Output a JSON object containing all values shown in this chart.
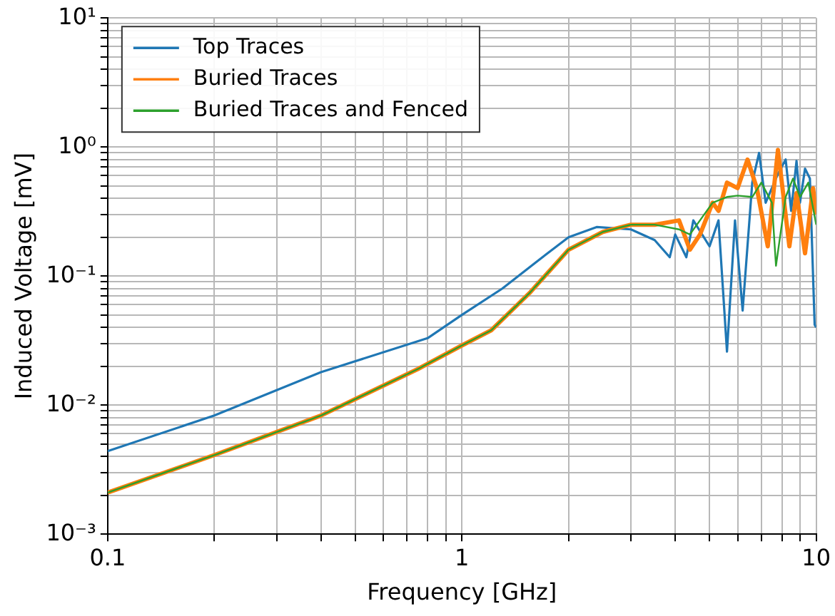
{
  "chart_data": {
    "type": "line",
    "xlabel": "Frequency [GHz]",
    "ylabel": "Induced Voltage [mV]",
    "log": "xy",
    "grid": true,
    "legend": "top left",
    "line_style": "solid",
    "marker": "none",
    "xlim": [
      0.1,
      10
    ],
    "ylim": [
      0.001,
      10
    ],
    "xticks": [
      0.1,
      {
        "value": 0.2,
        "label": null
      },
      {
        "value": 0.3,
        "label": null
      },
      {
        "value": 0.4,
        "label": null
      },
      {
        "value": 0.5,
        "label": null
      },
      {
        "value": 0.6,
        "label": null
      },
      {
        "value": 0.7,
        "label": null
      },
      {
        "value": 0.8,
        "label": null
      },
      {
        "value": 0.9,
        "label": null
      },
      1,
      {
        "value": 2,
        "label": null
      },
      {
        "value": 3,
        "label": null
      },
      {
        "value": 4,
        "label": null
      },
      {
        "value": 5,
        "label": null
      },
      {
        "value": 6,
        "label": null
      },
      {
        "value": 7,
        "label": null
      },
      {
        "value": 8,
        "label": null
      },
      {
        "value": 9,
        "label": null
      },
      10
    ],
    "yticks": [
      {
        "value": 0.001,
        "label": "10⁻³"
      },
      {
        "value": 0.002,
        "label": null
      },
      {
        "value": 0.003,
        "label": null
      },
      {
        "value": 0.004,
        "label": null
      },
      {
        "value": 0.005,
        "label": null
      },
      {
        "value": 0.006,
        "label": null
      },
      {
        "value": 0.007,
        "label": null
      },
      {
        "value": 0.008,
        "label": null
      },
      {
        "value": 0.009,
        "label": null
      },
      {
        "value": 0.01,
        "label": "10⁻²"
      },
      {
        "value": 0.02,
        "label": null
      },
      {
        "value": 0.03,
        "label": null
      },
      {
        "value": 0.04,
        "label": null
      },
      {
        "value": 0.05,
        "label": null
      },
      {
        "value": 0.06,
        "label": null
      },
      {
        "value": 0.07,
        "label": null
      },
      {
        "value": 0.08,
        "label": null
      },
      {
        "value": 0.09,
        "label": null
      },
      {
        "value": 0.1,
        "label": "10⁻¹"
      },
      {
        "value": 0.2,
        "label": null
      },
      {
        "value": 0.3,
        "label": null
      },
      {
        "value": 0.4,
        "label": null
      },
      {
        "value": 0.5,
        "label": null
      },
      {
        "value": 0.6,
        "label": null
      },
      {
        "value": 0.7,
        "label": null
      },
      {
        "value": 0.8,
        "label": null
      },
      {
        "value": 0.9,
        "label": null
      },
      {
        "value": 1,
        "label": "10⁰"
      },
      {
        "value": 2,
        "label": null
      },
      {
        "value": 3,
        "label": null
      },
      {
        "value": 4,
        "label": null
      },
      {
        "value": 5,
        "label": null
      },
      {
        "value": 6,
        "label": null
      },
      {
        "value": 7,
        "label": null
      },
      {
        "value": 8,
        "label": null
      },
      {
        "value": 9,
        "label": null
      },
      {
        "value": 10,
        "label": "10¹"
      }
    ],
    "series": [
      {
        "name": "Top Traces",
        "color": "#1f77b4",
        "x": [
          0.1,
          0.2,
          0.4,
          0.8,
          1,
          1.3,
          1.6,
          2,
          2.4,
          3,
          3.5,
          3.86,
          4,
          4.3,
          4.5,
          5,
          5.3,
          5.6,
          5.9,
          6.2,
          6.6,
          6.9,
          7.2,
          7.8,
          8.2,
          8.5,
          8.8,
          9,
          9.3,
          9.6,
          9.9,
          10
        ],
        "values": [
          0.0044,
          0.0083,
          0.018,
          0.033,
          0.05,
          0.08,
          0.125,
          0.2,
          0.24,
          0.23,
          0.19,
          0.14,
          0.21,
          0.14,
          0.27,
          0.17,
          0.27,
          0.026,
          0.27,
          0.054,
          0.53,
          0.9,
          0.37,
          0.62,
          0.8,
          0.32,
          0.78,
          0.37,
          0.68,
          0.57,
          0.042,
          0.04
        ]
      },
      {
        "name": "Buried Traces",
        "color": "#ff7f0e",
        "x": [
          0.1,
          0.2,
          0.4,
          0.75,
          1,
          1.21,
          1.56,
          2,
          2.5,
          3,
          3.5,
          4.1,
          4.4,
          4.7,
          5.1,
          5.3,
          5.6,
          6,
          6.4,
          6.8,
          7.3,
          7.8,
          8.4,
          8.8,
          9.3,
          9.8,
          10
        ],
        "values": [
          0.0021,
          0.0041,
          0.0083,
          0.019,
          0.029,
          0.038,
          0.075,
          0.16,
          0.22,
          0.25,
          0.25,
          0.27,
          0.16,
          0.21,
          0.37,
          0.32,
          0.53,
          0.48,
          0.8,
          0.48,
          0.17,
          0.95,
          0.17,
          0.44,
          0.15,
          0.48,
          0.3
        ]
      },
      {
        "name": "Buried Traces and Fenced",
        "color": "#2ca02c",
        "x": [
          0.1,
          0.2,
          0.4,
          0.75,
          1,
          1.21,
          1.56,
          2,
          2.5,
          3,
          3.5,
          4.1,
          4.4,
          5.1,
          5.6,
          6,
          6.6,
          7,
          7.5,
          7.7,
          8.2,
          8.6,
          9,
          9.5,
          9.9,
          10
        ],
        "values": [
          0.0021,
          0.0041,
          0.0083,
          0.019,
          0.029,
          0.038,
          0.075,
          0.16,
          0.22,
          0.25,
          0.25,
          0.23,
          0.21,
          0.37,
          0.41,
          0.42,
          0.41,
          0.53,
          0.37,
          0.12,
          0.41,
          0.57,
          0.41,
          0.53,
          0.29,
          0.25
        ]
      }
    ]
  }
}
